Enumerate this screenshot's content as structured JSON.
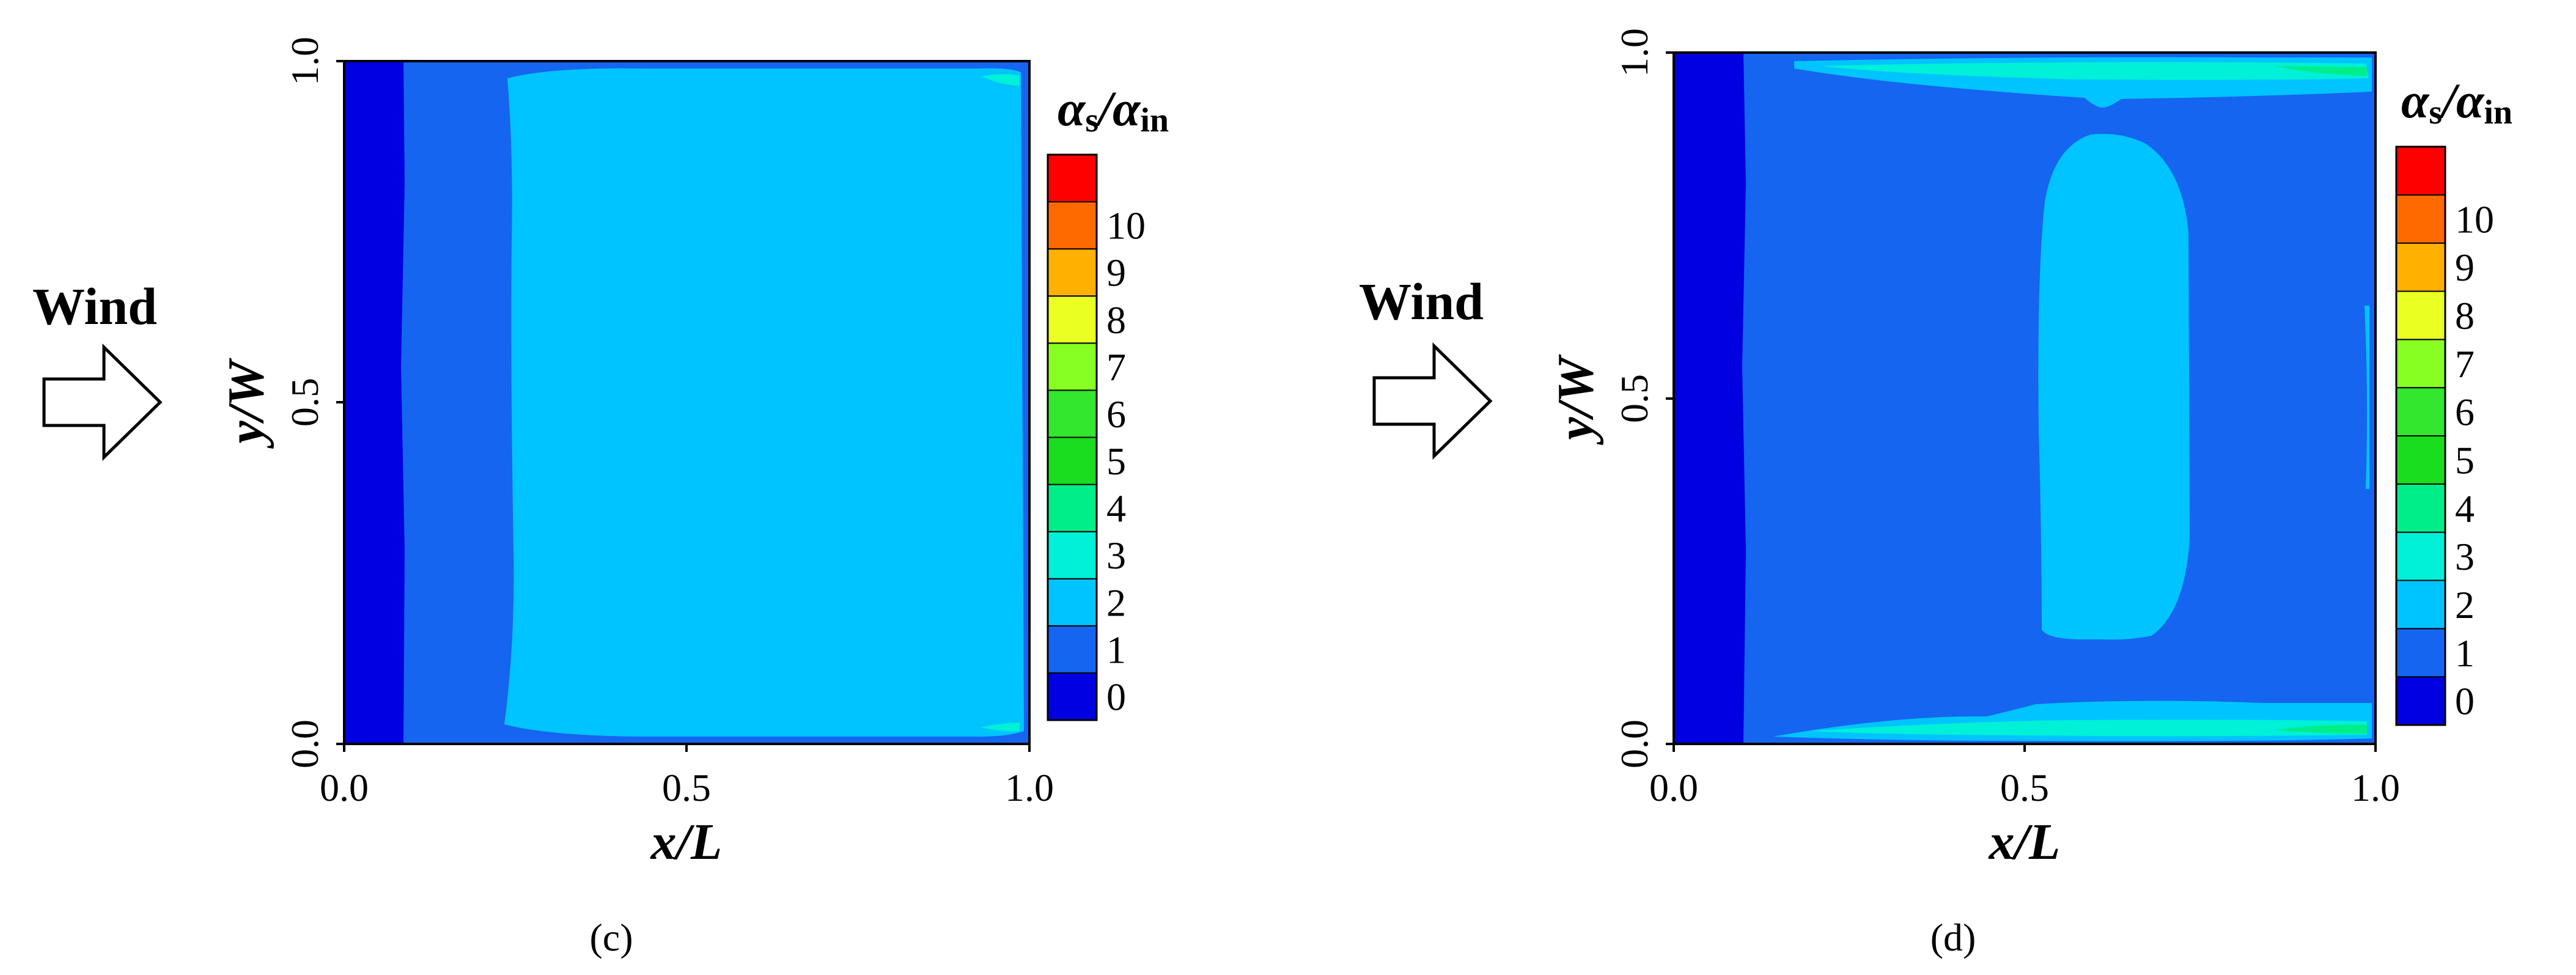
{
  "chart_data": [
    {
      "type": "heatmap",
      "panel_label": "(c)",
      "xlabel": "x/L",
      "ylabel": "y/W",
      "xlim": [
        0.0,
        1.0
      ],
      "ylim": [
        0.0,
        1.0
      ],
      "x_ticks": [
        "0.0",
        "0.5",
        "1.0"
      ],
      "y_ticks": [
        "0.0",
        "0.5",
        "1.0"
      ],
      "inflow_label": "Wind",
      "inflow_direction": "left-to-right",
      "regions": [
        {
          "level": 0,
          "description_x": [
            0.0,
            0.09
          ]
        },
        {
          "level": 1,
          "description_x": [
            0.09,
            0.23
          ]
        },
        {
          "level": 2,
          "description_x": [
            0.23,
            1.0
          ]
        }
      ]
    },
    {
      "type": "heatmap",
      "panel_label": "(d)",
      "xlabel": "x/L",
      "ylabel": "y/W",
      "xlim": [
        0.0,
        1.0
      ],
      "ylim": [
        0.0,
        1.0
      ],
      "x_ticks": [
        "0.0",
        "0.5",
        "1.0"
      ],
      "y_ticks": [
        "0.0",
        "0.5",
        "1.0"
      ],
      "inflow_label": "Wind",
      "inflow_direction": "left-to-right",
      "regions": [
        {
          "level": 0,
          "description_x": [
            0.0,
            0.1
          ]
        },
        {
          "level": 1,
          "description_x": [
            0.1,
            1.0
          ]
        },
        {
          "level": 2,
          "description_x": [
            0.52,
            0.76
          ],
          "description_y": [
            0.15,
            0.88
          ]
        },
        {
          "level": 3,
          "description": "thin bands along y/W = 0 and y/W = 1 walls"
        }
      ]
    }
  ],
  "colorbar": {
    "title_main_1": "α",
    "title_sub_1": "s",
    "title_sep": "/",
    "title_main_2": "α",
    "title_sub_2": "in",
    "levels": [
      "0",
      "1",
      "2",
      "3",
      "4",
      "5",
      "6",
      "7",
      "8",
      "9",
      "10"
    ],
    "colors": [
      "#0000e0",
      "#1565f0",
      "#00c4ff",
      "#00f0d8",
      "#00ee8a",
      "#19dd1e",
      "#33e62e",
      "#88ff22",
      "#eaff22",
      "#ffb000",
      "#ff6a00",
      "#ff0000"
    ]
  },
  "panel_fill_colors": {
    "level0": "#0000e0",
    "level1": "#1565f0",
    "level2": "#00c4ff",
    "level3": "#00f0d8"
  }
}
